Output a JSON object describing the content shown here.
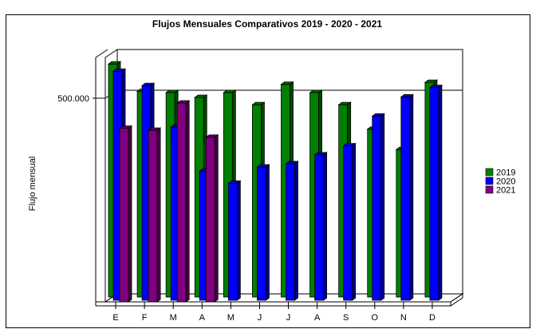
{
  "chart_data": {
    "type": "bar",
    "title": "Flujos Mensuales Comparativos 2019 - 2020 - 2021",
    "ylabel": "Flujo mensual",
    "xlabel": "",
    "y_tick_labels": [
      {
        "value": 500000,
        "label": "500.000"
      }
    ],
    "ylim": [
      0,
      600000
    ],
    "categories": [
      "E",
      "F",
      "M",
      "A",
      "M",
      "J",
      "J",
      "A",
      "S",
      "O",
      "N",
      "D"
    ],
    "series": [
      {
        "name": "2019",
        "color": "#008000",
        "values": [
          580000,
          513000,
          510000,
          498000,
          510000,
          480000,
          530000,
          510000,
          480000,
          420000,
          370000,
          535000
        ]
      },
      {
        "name": "2020",
        "color": "#0000ff",
        "values": [
          570000,
          535000,
          433000,
          325000,
          295000,
          335000,
          343000,
          365000,
          387000,
          460000,
          507000,
          530000
        ]
      },
      {
        "name": "2021",
        "color": "#800080",
        "values": [
          434000,
          429000,
          496000,
          412000,
          null,
          null,
          null,
          null,
          null,
          null,
          null,
          null
        ]
      }
    ],
    "legend_position": "right",
    "grid": true
  }
}
